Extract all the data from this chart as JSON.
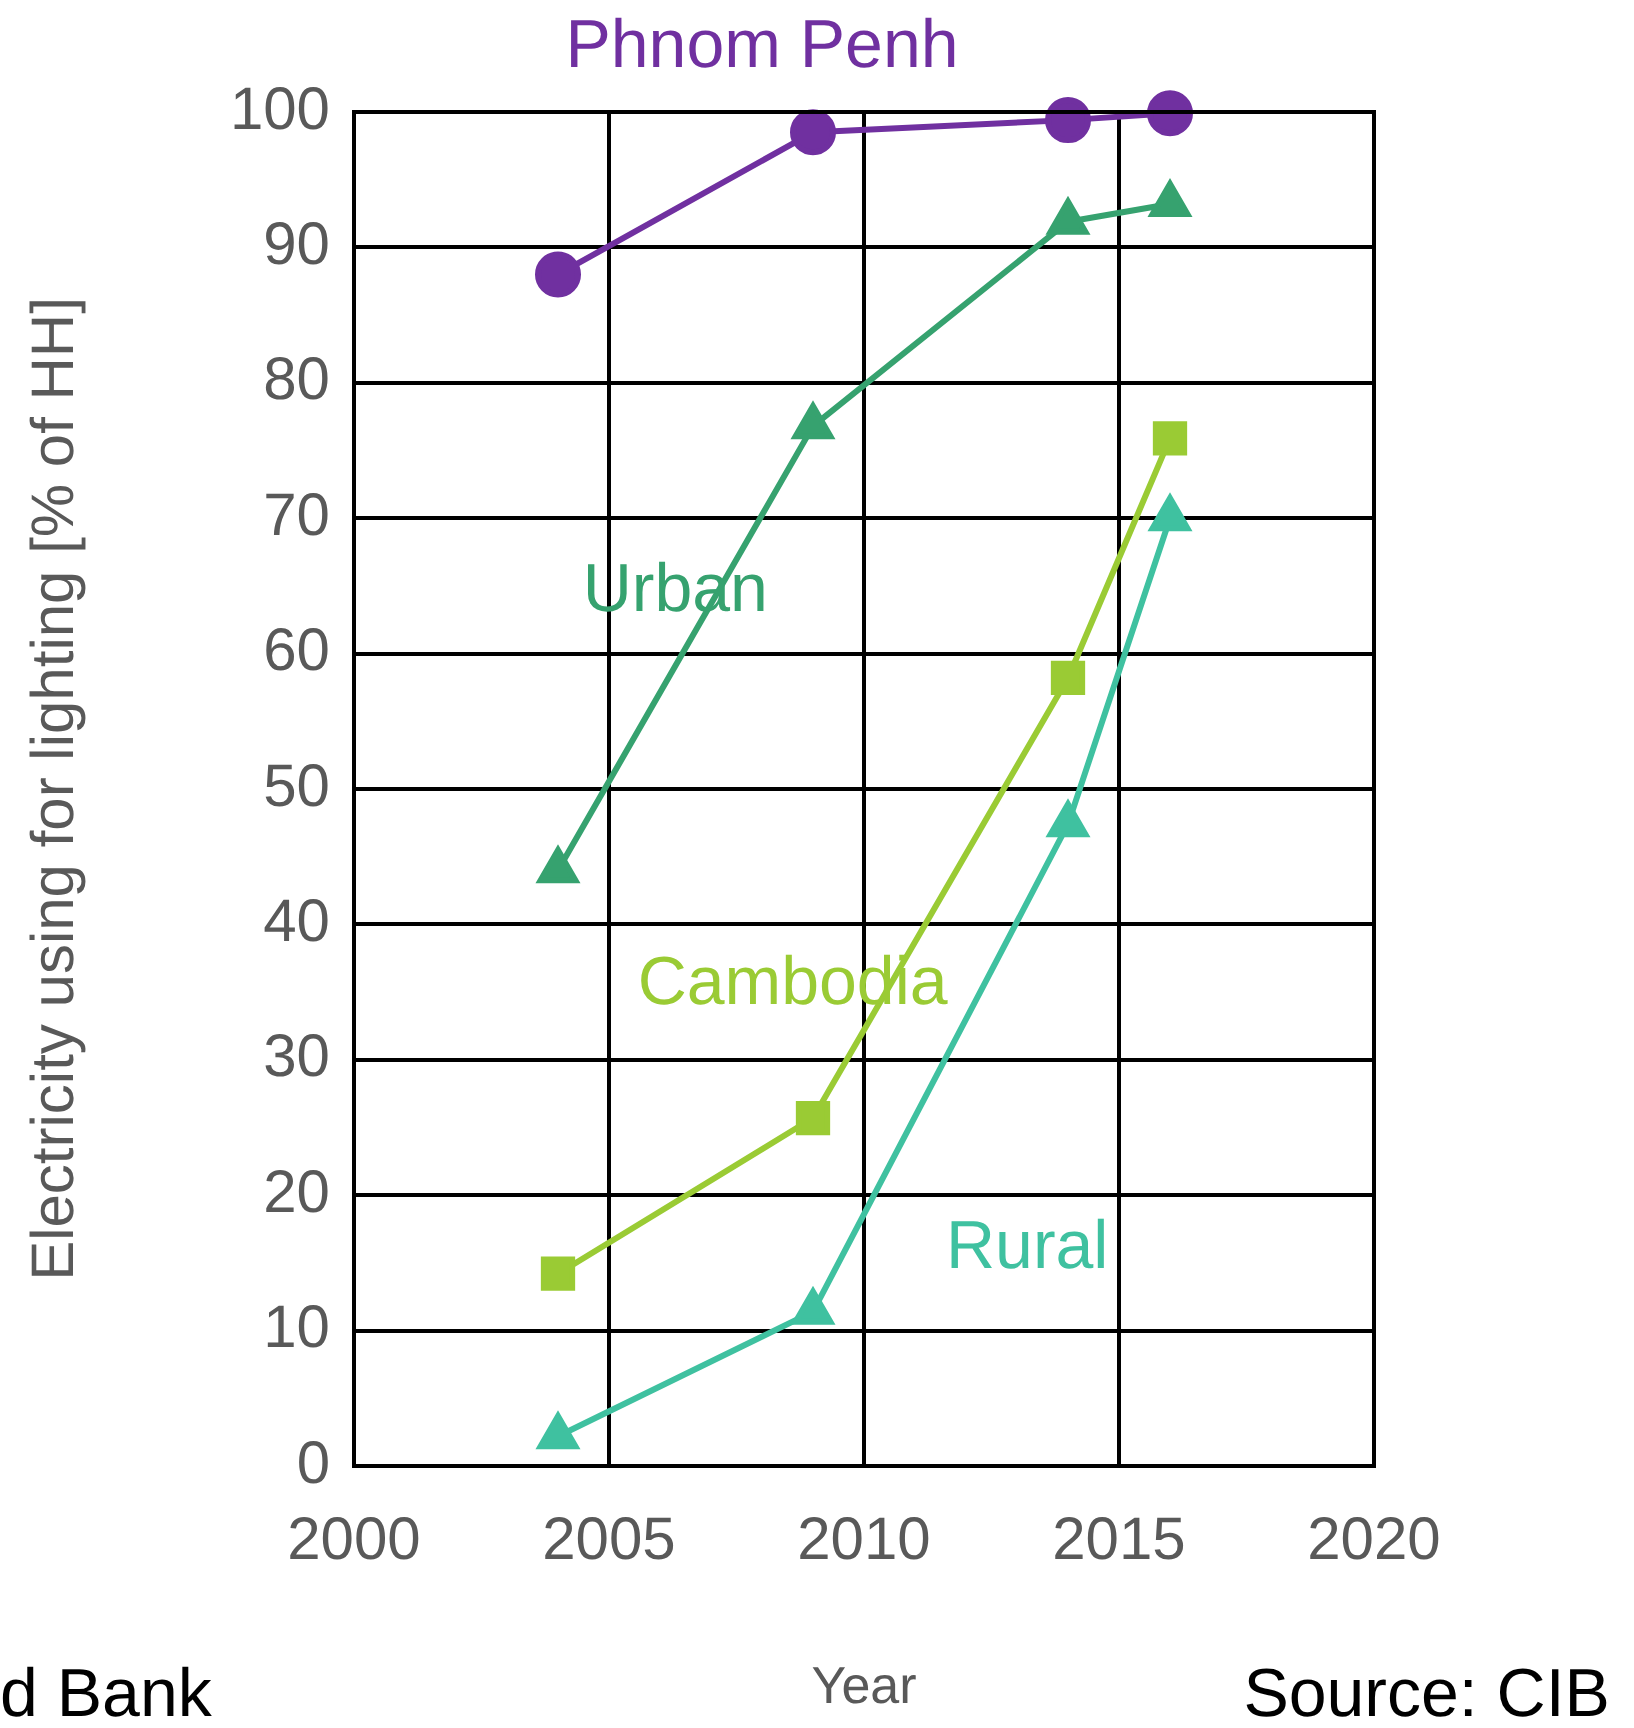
{
  "chart_data": {
    "type": "line",
    "xlabel": "Year",
    "ylabel": "Electricity using for lighting [% of HH]",
    "x": [
      2004,
      2009,
      2014,
      2016
    ],
    "series": [
      {
        "name": "Phnom Penh",
        "color": "#7030a0",
        "marker": "circle",
        "values": [
          88,
          98.5,
          99.4,
          99.9
        ]
      },
      {
        "name": "Urban",
        "color": "#36a26f",
        "marker": "triangle",
        "values": [
          44,
          76.8,
          91.9,
          93.2
        ]
      },
      {
        "name": "Cambodia",
        "color": "#9acb34",
        "marker": "square",
        "values": [
          14.2,
          25.7,
          58.2,
          75.9
        ]
      },
      {
        "name": "Rural",
        "color": "#3fc1a0",
        "marker": "triangle",
        "values": [
          2.2,
          11.4,
          47.4,
          70
        ]
      }
    ],
    "xlim": [
      2000,
      2020
    ],
    "xticks": [
      2000,
      2005,
      2010,
      2015,
      2020
    ],
    "ylim": [
      0,
      100
    ],
    "yticks": [
      0,
      10,
      20,
      30,
      40,
      50,
      60,
      70,
      80,
      90,
      100
    ],
    "grid": true,
    "legend": false,
    "line_style": "solid",
    "annotations": [
      "d Bank",
      "Source: CIB"
    ]
  }
}
